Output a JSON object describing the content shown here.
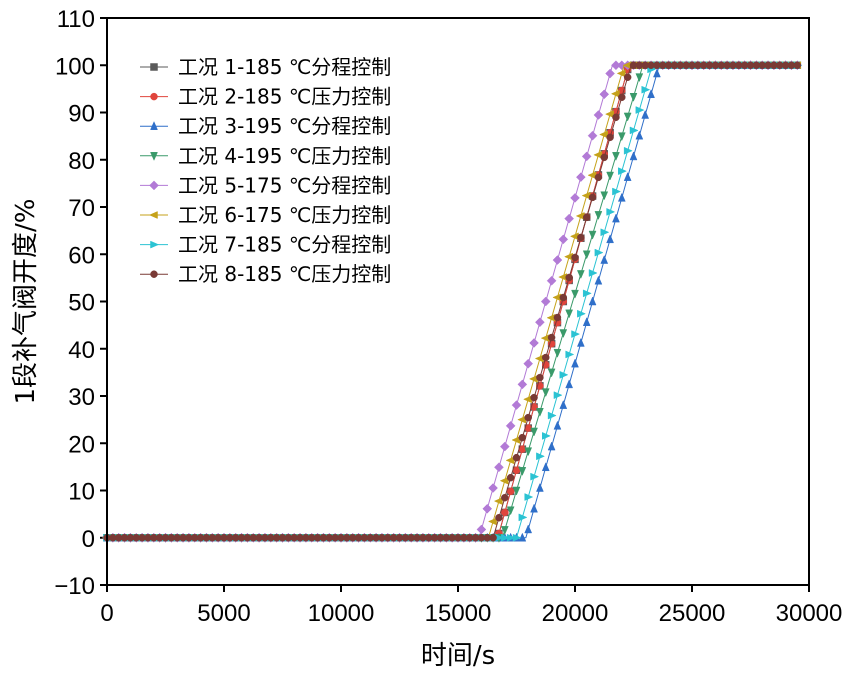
{
  "chart_data": {
    "type": "line",
    "xlabel": "时间/s",
    "ylabel": "1段补气阀开度/%",
    "xlim": [
      0,
      30000
    ],
    "ylim": [
      -10,
      110
    ],
    "xticks": [
      "0",
      "5000",
      "10000",
      "15000",
      "20000",
      "25000",
      "30000"
    ],
    "yticks": [
      "−10",
      "0",
      "10",
      "20",
      "30",
      "40",
      "50",
      "60",
      "70",
      "80",
      "90",
      "100",
      "110"
    ],
    "legend_position": "top-left",
    "grid": false,
    "series": [
      {
        "name": "工况 1-185 ℃分程控制",
        "color": "#5a5a5a",
        "marker": "square",
        "x": [
          0,
          16700,
          22300,
          29500
        ],
        "y": [
          0,
          0,
          100,
          100
        ]
      },
      {
        "name": "工况 2-185 ℃压力控制",
        "color": "#e0453c",
        "marker": "circle",
        "x": [
          0,
          16700,
          22300,
          29500
        ],
        "y": [
          0,
          0,
          100,
          100
        ]
      },
      {
        "name": "工况 3-195 ℃分程控制",
        "color": "#2f6fc9",
        "marker": "triangle-up",
        "x": [
          0,
          17900,
          23600,
          29500
        ],
        "y": [
          0,
          0,
          100,
          100
        ]
      },
      {
        "name": "工况 4-195 ℃压力控制",
        "color": "#3a9a6a",
        "marker": "triangle-down",
        "x": [
          0,
          16900,
          22900,
          29500
        ],
        "y": [
          0,
          0,
          100,
          100
        ]
      },
      {
        "name": "工况 5-175 ℃分程控制",
        "color": "#b27ad6",
        "marker": "diamond",
        "x": [
          0,
          15900,
          21600,
          29500
        ],
        "y": [
          0,
          0,
          100,
          100
        ]
      },
      {
        "name": "工况 6-175 ℃压力控制",
        "color": "#c5a21a",
        "marker": "triangle-left",
        "x": [
          0,
          16300,
          22100,
          29500
        ],
        "y": [
          0,
          0,
          100,
          100
        ]
      },
      {
        "name": "工况 7-185 ℃分程控制",
        "color": "#2bc3d3",
        "marker": "triangle-right",
        "x": [
          0,
          17500,
          23300,
          29500
        ],
        "y": [
          0,
          0,
          100,
          100
        ]
      },
      {
        "name": "工况 8-185 ℃压力控制",
        "color": "#7a3a35",
        "marker": "circle",
        "x": [
          0,
          16500,
          22400,
          29500
        ],
        "y": [
          0,
          0,
          100,
          100
        ]
      }
    ]
  }
}
